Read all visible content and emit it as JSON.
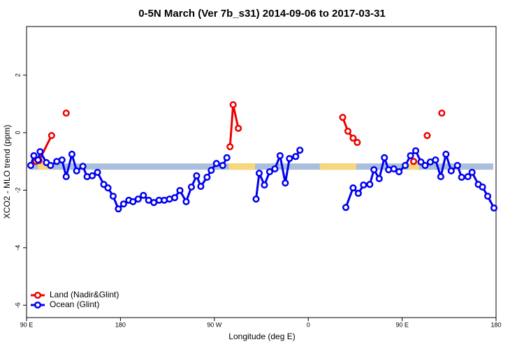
{
  "chart_data": {
    "type": "line",
    "title": "0-5N March (Ver 7b_s31)   2014-09-06 to 2017-03-31",
    "x_label": "Longitude (deg E)",
    "y_label": "XCO2 - MLO trend (ppm)",
    "xlim": [
      90,
      540
    ],
    "ylim": [
      -6.43,
      3.69
    ],
    "xticks": [
      {
        "value": 90,
        "label": "90 E"
      },
      180,
      {
        "value": 270,
        "label": "90 W"
      },
      {
        "value": 360,
        "label": "0"
      },
      {
        "value": 450,
        "label": "90 E"
      },
      {
        "value": 540,
        "label": "180"
      }
    ],
    "yticks": [
      -6,
      -4,
      -2,
      0,
      2
    ],
    "legend": "bottom-left",
    "band": {
      "range": [
        -1.29,
        -1.07
      ],
      "color": "#a9bfdc",
      "land_color": "#f8d77a",
      "land_spans": [
        [
          101,
          115
        ],
        [
          284,
          309
        ],
        [
          371,
          406
        ],
        [
          456,
          466
        ]
      ]
    },
    "series": [
      {
        "name": "Land (Nadir&Glint)",
        "color": "#ee0000",
        "x": [
          99,
          102,
          114,
          121,
          128,
          200,
          285,
          288,
          293,
          340,
          393,
          398,
          403,
          407,
          430,
          461,
          468,
          474,
          480,
          488
        ],
        "values": [
          -1.0,
          -0.97,
          -0.1,
          null,
          0.68,
          null,
          -0.49,
          0.97,
          0.15,
          null,
          0.53,
          0.05,
          -0.19,
          -0.34,
          null,
          -1.0,
          null,
          -0.1,
          null,
          0.68
        ]
      },
      {
        "name": "Ocean (Glint)",
        "color": "#0000ee",
        "x": [
          94,
          97,
          101,
          103,
          109,
          113,
          119,
          124,
          128,
          133.5,
          138,
          144,
          148,
          153,
          158,
          164,
          168,
          173,
          178,
          183,
          188,
          192,
          197,
          202,
          207,
          212,
          217,
          222,
          227,
          232,
          237,
          243,
          248,
          253,
          257,
          263,
          267,
          272,
          278,
          282,
          296,
          310,
          313,
          318,
          323,
          328,
          333,
          338,
          342,
          348,
          352,
          374,
          396,
          403,
          408,
          413,
          419,
          423,
          428,
          433,
          437,
          442,
          447,
          453,
          458,
          463,
          468,
          472,
          477,
          482,
          487,
          492,
          497,
          503,
          507,
          513,
          517,
          523,
          527,
          532,
          538
        ],
        "values": [
          -1.14,
          -0.8,
          -0.95,
          -0.66,
          -1.04,
          -1.14,
          -1.0,
          -0.95,
          -1.53,
          -0.75,
          -1.33,
          -1.17,
          -1.53,
          -1.5,
          -1.38,
          -1.8,
          -1.92,
          -2.21,
          -2.65,
          -2.48,
          -2.35,
          -2.4,
          -2.31,
          -2.18,
          -2.35,
          -2.43,
          -2.35,
          -2.35,
          -2.31,
          -2.26,
          -2.01,
          -2.4,
          -1.89,
          -1.5,
          -1.87,
          -1.55,
          -1.31,
          -1.07,
          -1.14,
          -0.87,
          null,
          -2.31,
          -1.41,
          -1.82,
          -1.36,
          -1.26,
          -0.8,
          -1.75,
          -0.9,
          -0.83,
          -0.61,
          null,
          -2.6,
          -1.92,
          -2.11,
          -1.82,
          -1.8,
          -1.29,
          -1.6,
          -0.87,
          -1.29,
          -1.26,
          -1.36,
          -1.14,
          -0.8,
          -0.63,
          -1.02,
          -1.14,
          -1.02,
          -0.95,
          -1.53,
          -0.75,
          -1.33,
          -1.14,
          -1.55,
          -1.53,
          -1.38,
          -1.8,
          -1.89,
          -2.21,
          -2.62
        ]
      }
    ]
  }
}
